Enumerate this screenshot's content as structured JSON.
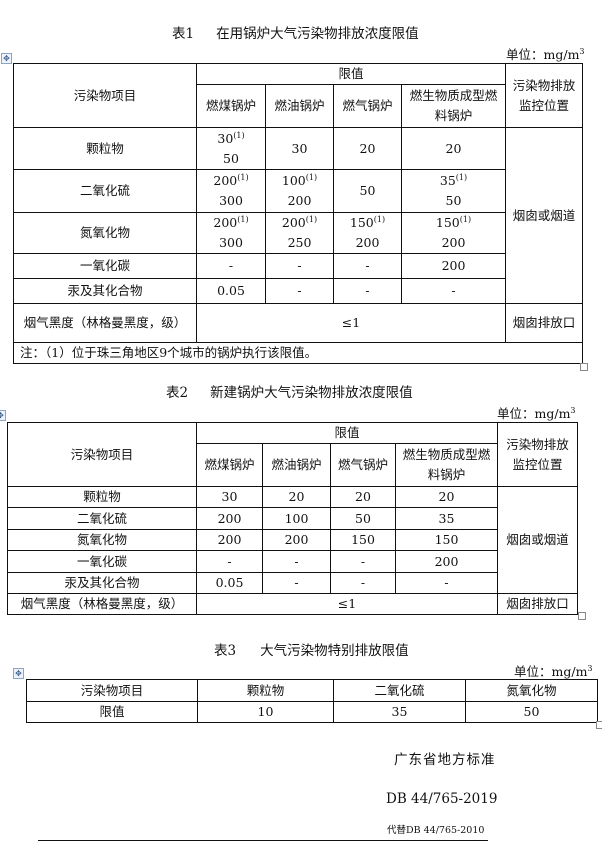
{
  "unit_label": "单位：mg/m",
  "unit_sup": "3",
  "table1": {
    "title_num": "表1",
    "title_text": "在用锅炉大气污染物排放浓度限值",
    "header_item": "污染物项目",
    "header_limit": "限值",
    "header_monitor": "污染物排放监控位置",
    "boilers": [
      "燃煤锅炉",
      "燃油锅炉",
      "燃气锅炉",
      "燃生物质成型燃料锅炉"
    ],
    "rows": [
      {
        "name": "颗粒物",
        "values": [
          {
            "main": "30",
            "sup": "(1)",
            "alt": "50"
          },
          "30",
          "20",
          "20"
        ]
      },
      {
        "name": "二氧化硫",
        "values": [
          {
            "main": "200",
            "sup": "(1)",
            "alt": "300"
          },
          {
            "main": "100",
            "sup": "(1)",
            "alt": "200"
          },
          "50",
          {
            "main": "35",
            "sup": "(1)",
            "alt": "50"
          }
        ]
      },
      {
        "name": "氮氧化物",
        "values": [
          {
            "main": "200",
            "sup": "(1)",
            "alt": "300"
          },
          {
            "main": "200",
            "sup": "(1)",
            "alt": "250"
          },
          {
            "main": "150",
            "sup": "(1)",
            "alt": "200"
          },
          {
            "main": "150",
            "sup": "(1)",
            "alt": "200"
          }
        ]
      },
      {
        "name": "一氧化碳",
        "values": [
          "-",
          "-",
          "-",
          "200"
        ]
      },
      {
        "name": "汞及其化合物",
        "values": [
          "0.05",
          "-",
          "-",
          "-"
        ]
      }
    ],
    "monitor_location": "烟囱或烟道",
    "smoke_name": "烟气黑度（林格曼黑度，级）",
    "smoke_value": "≤1",
    "smoke_location": "烟囱排放口",
    "note": "注：（1）位于珠三角地区9个城市的锅炉执行该限值。"
  },
  "table2": {
    "title_num": "表2",
    "title_text": "新建锅炉大气污染物排放浓度限值",
    "header_item": "污染物项目",
    "header_limit": "限值",
    "header_monitor": "污染物排放监控位置",
    "boilers": [
      "燃煤锅炉",
      "燃油锅炉",
      "燃气锅炉",
      "燃生物质成型燃料锅炉"
    ],
    "rows": [
      {
        "name": "颗粒物",
        "values": [
          "30",
          "20",
          "20",
          "20"
        ]
      },
      {
        "name": "二氧化硫",
        "values": [
          "200",
          "100",
          "50",
          "35"
        ]
      },
      {
        "name": "氮氧化物",
        "values": [
          "200",
          "200",
          "150",
          "150"
        ]
      },
      {
        "name": "一氧化碳",
        "values": [
          "-",
          "-",
          "-",
          "200"
        ]
      },
      {
        "name": "汞及其化合物",
        "values": [
          "0.05",
          "-",
          "-",
          "-"
        ]
      }
    ],
    "monitor_location": "烟囱或烟道",
    "smoke_name": "烟气黑度（林格曼黑度，级）",
    "smoke_value": "≤1",
    "smoke_location": "烟囱排放口"
  },
  "table3": {
    "title_num": "表3",
    "title_text": "大气污染物特别排放限值",
    "headers": [
      "污染物项目",
      "颗粒物",
      "二氧化硫",
      "氮氧化物"
    ],
    "row": [
      "限值",
      "10",
      "35",
      "50"
    ]
  },
  "footer": {
    "org": "广东省地方标准",
    "code": "DB 44/765-2019",
    "replaces": "代替DB 44/765-2010"
  }
}
